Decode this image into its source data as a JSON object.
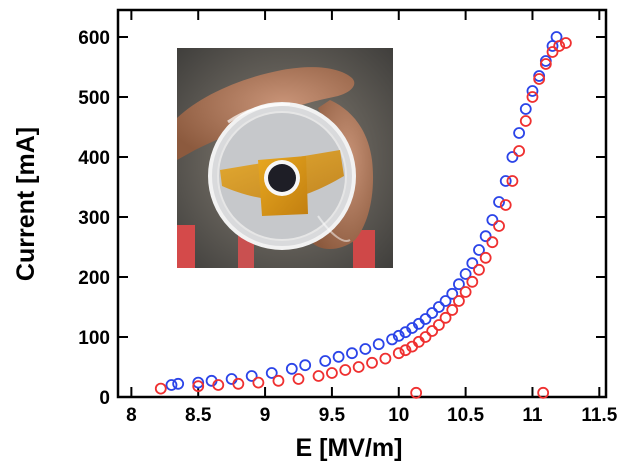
{
  "chart_data": {
    "type": "scatter",
    "xlabel": "E [MV/m]",
    "ylabel": "Current [mA]",
    "xlim": [
      7.9,
      11.55
    ],
    "ylim": [
      0,
      645
    ],
    "x_ticks": [
      "8",
      "8.5",
      "9",
      "9.5",
      "10",
      "10.5",
      "11",
      "11.5"
    ],
    "y_ticks": [
      "0",
      "100",
      "200",
      "300",
      "400",
      "500",
      "600"
    ],
    "grid": false,
    "legend": "none",
    "inset": "photograph of a hand holding a glass dish with a round sample on amber film",
    "series": [
      {
        "color": "#2b44e8",
        "marker": "open-circle",
        "x": [
          8.3,
          8.35,
          8.5,
          8.6,
          8.75,
          8.9,
          9.05,
          9.2,
          9.3,
          9.45,
          9.55,
          9.65,
          9.75,
          9.85,
          9.95,
          10.0,
          10.05,
          10.1,
          10.15,
          10.2,
          10.25,
          10.3,
          10.35,
          10.4,
          10.45,
          10.5,
          10.55,
          10.6,
          10.65,
          10.7,
          10.75,
          10.8,
          10.85,
          10.9,
          10.95,
          11.0,
          11.05,
          11.1,
          11.15,
          11.18
        ],
        "y": [
          20,
          22,
          24,
          27,
          30,
          35,
          40,
          47,
          53,
          60,
          67,
          73,
          80,
          88,
          96,
          102,
          108,
          115,
          122,
          130,
          140,
          150,
          160,
          172,
          188,
          205,
          223,
          245,
          268,
          295,
          325,
          360,
          400,
          440,
          480,
          510,
          535,
          560,
          585,
          600
        ]
      },
      {
        "color": "#ef3030",
        "marker": "open-circle",
        "x": [
          8.22,
          8.5,
          8.65,
          8.8,
          8.95,
          9.1,
          9.25,
          9.4,
          9.5,
          9.6,
          9.7,
          9.8,
          9.9,
          10.0,
          10.05,
          10.1,
          10.15,
          10.2,
          10.25,
          10.3,
          10.35,
          10.4,
          10.45,
          10.5,
          10.55,
          10.6,
          10.65,
          10.7,
          10.75,
          10.8,
          10.85,
          10.9,
          10.95,
          11.0,
          11.05,
          11.1,
          11.15,
          11.2,
          11.25,
          10.13,
          11.08
        ],
        "y": [
          14,
          18,
          20,
          22,
          24,
          27,
          30,
          35,
          40,
          45,
          50,
          57,
          64,
          73,
          78,
          84,
          92,
          100,
          110,
          120,
          132,
          145,
          160,
          175,
          192,
          212,
          232,
          258,
          285,
          320,
          360,
          410,
          460,
          500,
          530,
          555,
          575,
          585,
          590,
          7,
          7
        ]
      }
    ]
  }
}
